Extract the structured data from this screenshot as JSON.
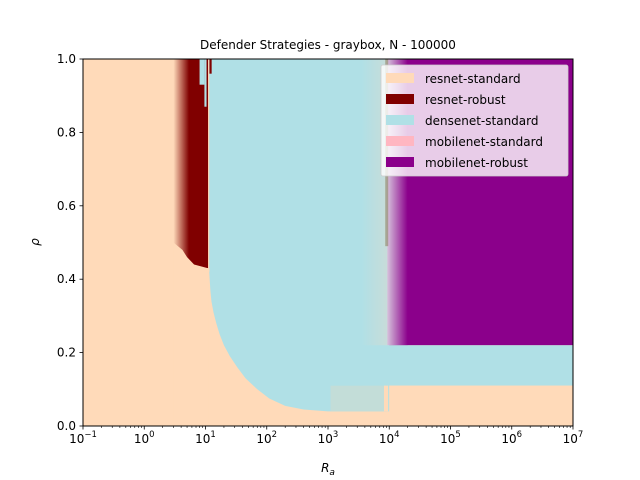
{
  "chart_data": {
    "type": "heatmap",
    "title": "Defender Strategies - graybox, N - 100000",
    "xlabel": "R_a",
    "ylabel": "ρ",
    "xscale": "log",
    "xlim": [
      0.1,
      10000000
    ],
    "ylim": [
      0.0,
      1.0
    ],
    "xticks": [
      {
        "base": "10",
        "exp": "−1",
        "value": 0.1
      },
      {
        "base": "10",
        "exp": "0",
        "value": 1
      },
      {
        "base": "10",
        "exp": "1",
        "value": 10
      },
      {
        "base": "10",
        "exp": "2",
        "value": 100
      },
      {
        "base": "10",
        "exp": "3",
        "value": 1000
      },
      {
        "base": "10",
        "exp": "4",
        "value": 10000
      },
      {
        "base": "10",
        "exp": "5",
        "value": 100000
      },
      {
        "base": "10",
        "exp": "6",
        "value": 1000000
      },
      {
        "base": "10",
        "exp": "7",
        "value": 10000000
      }
    ],
    "yticks": [
      "0.0",
      "0.2",
      "0.4",
      "0.6",
      "0.8",
      "1.0"
    ],
    "ytick_values": [
      0.0,
      0.2,
      0.4,
      0.6,
      0.8,
      1.0
    ],
    "legend_position": "top-right",
    "series": [
      {
        "name": "resnet-standard",
        "color": "#ffdab9"
      },
      {
        "name": "resnet-robust",
        "color": "#800000"
      },
      {
        "name": "densenet-standard",
        "color": "#b0e0e6"
      },
      {
        "name": "mobilenet-standard",
        "color": "#ffb6c1"
      },
      {
        "name": "mobilenet-robust",
        "color": "#8b008b"
      }
    ],
    "regions": {
      "densenet_lower_boundary": [
        [
          11.5,
          0.42
        ],
        [
          12,
          0.37
        ],
        [
          12.5,
          0.34
        ],
        [
          13.5,
          0.31
        ],
        [
          15,
          0.28
        ],
        [
          17,
          0.25
        ],
        [
          20,
          0.22
        ],
        [
          25,
          0.19
        ],
        [
          33,
          0.16
        ],
        [
          45,
          0.13
        ],
        [
          70,
          0.1
        ],
        [
          110,
          0.075
        ],
        [
          200,
          0.055
        ],
        [
          400,
          0.045
        ],
        [
          1000,
          0.04
        ],
        [
          9000,
          0.04
        ]
      ],
      "resnet_robust_band": {
        "x_start": 3,
        "x_end": 11,
        "y_bottom": 0.43,
        "y_top": 1.0
      },
      "resnet_robust_top_steps": [
        [
          8,
          0.93
        ],
        [
          9.5,
          0.87
        ],
        [
          12,
          0.96
        ]
      ],
      "mobilenet_robust_block": {
        "x_start": 10000,
        "x_end": 10000000,
        "y_bottom": 0.22,
        "y_top": 1.0
      },
      "densenet_strip": {
        "x_start": 1000,
        "x_end": 10000000,
        "y_bottom": 0.11,
        "y_top": 0.22
      },
      "resnet_standard_bottom": {
        "x_start": 10000,
        "x_end": 10000000,
        "y_bottom": 0.0,
        "y_top": 0.11
      }
    }
  }
}
